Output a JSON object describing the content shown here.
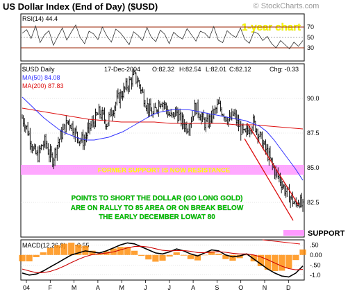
{
  "chart_data": {
    "type": "line",
    "title": "US Dollar Index (End of Day) ($USD)",
    "watermark": "© StockCharts.com",
    "corner_label": "1-year chart",
    "rsi_panel": {
      "label": "RSI(14) 44.4",
      "levels": [
        70,
        50,
        30
      ],
      "tick_labels": [
        "70",
        "50",
        "30"
      ],
      "series": [
        58,
        65,
        48,
        72,
        40,
        55,
        63,
        35,
        52,
        68,
        45,
        60,
        74,
        50,
        38,
        62,
        57,
        46,
        70,
        53,
        41,
        66,
        59,
        48,
        36,
        61,
        54,
        44,
        69,
        50,
        42,
        64,
        56,
        38,
        60,
        52,
        47,
        67,
        55,
        43,
        62,
        58,
        49,
        71,
        45,
        40,
        63,
        55,
        50,
        68,
        46,
        39,
        61,
        57,
        44,
        52,
        38,
        30,
        44,
        36,
        28,
        41,
        33,
        44
      ]
    },
    "price_panel": {
      "symbol_label": "$USD Daily",
      "date_label": "17-Dec-2004",
      "ohlc": {
        "open": "O:82.32",
        "high": "H:82.54",
        "low": "L:82.01",
        "close": "C:82.12",
        "change": "Chg: -0.33"
      },
      "ma50_label": "MA(50) 84.08",
      "ma200_label": "MA(200) 87.83",
      "ma50_color": "#3333ff",
      "ma200_color": "#dd1111",
      "y_tick_labels": [
        "90.0",
        "87.5",
        "85.0",
        "82.5"
      ],
      "y_ticks": [
        90.0,
        87.5,
        85.0,
        82.5
      ],
      "ylim": [
        80.0,
        92.5
      ],
      "closes": [
        88.6,
        88.0,
        87.2,
        86.2,
        85.8,
        86.5,
        86.9,
        86.0,
        85.6,
        86.6,
        87.3,
        87.9,
        88.4,
        88.0,
        87.4,
        87.1,
        86.9,
        87.6,
        88.1,
        88.5,
        89.0,
        88.7,
        88.2,
        88.9,
        89.5,
        90.0,
        90.4,
        90.8,
        91.2,
        91.6,
        91.3,
        90.6,
        89.8,
        89.2,
        88.8,
        89.4,
        89.9,
        89.6,
        88.9,
        88.6,
        89.1,
        88.5,
        88.2,
        87.9,
        88.6,
        89.4,
        89.0,
        88.4,
        88.1,
        88.6,
        89.0,
        89.5,
        89.1,
        88.7,
        88.4,
        88.9,
        88.2,
        87.7,
        87.3,
        87.9,
        88.3,
        87.8,
        87.1,
        86.5,
        85.9,
        85.2,
        84.6,
        84.2,
        83.6,
        83.1,
        82.8,
        82.3,
        82.7,
        82.1
      ],
      "ma50": [
        90.1,
        89.6,
        89.1,
        88.6,
        88.2,
        87.8,
        87.5,
        87.3,
        87.1,
        87.0,
        87.0,
        87.1,
        87.2,
        87.4,
        87.6,
        87.9,
        88.2,
        88.5,
        88.8,
        89.0,
        89.1,
        89.2,
        89.2,
        89.2,
        89.1,
        89.0,
        88.9,
        88.8,
        88.7,
        88.6,
        88.5,
        88.4,
        88.2,
        88.0,
        87.6,
        87.0,
        86.3,
        85.6,
        84.9,
        84.1
      ],
      "ma200": [
        89.3,
        89.1,
        88.9,
        88.7,
        88.5,
        88.4,
        88.3,
        88.3,
        88.3,
        88.2,
        88.2,
        88.2,
        88.2,
        88.1,
        88.1,
        88.0,
        87.9,
        87.8
      ],
      "support_band": [
        84.5,
        85.2
      ],
      "support_band_text": "FORMER SUPPORT IS NOW RESISTANCE",
      "support_level": 80.3,
      "support_label": "SUPPORT",
      "channel_upper": [
        [
          88.8,
          83.2
        ]
      ],
      "annotation": [
        "POINTS TO SHORT THE DOLLAR (GO LONG GOLD)",
        "ARE ON RALLY TO 85 AREA OR ON BREAK BELOW",
        "THE EARLY DECEMBER LOWAT 80"
      ]
    },
    "macd_panel": {
      "label": "MACD(12,26,9)",
      "value_label": "-0.55",
      "y_tick_labels": [
        ".50",
        "0.00",
        "-.50",
        "-1.0"
      ],
      "y_ticks": [
        0.5,
        0.0,
        -0.5,
        -1.0
      ],
      "ylim": [
        -1.25,
        0.75
      ],
      "macd": [
        -0.9,
        -1.0,
        -0.95,
        -0.8,
        -0.6,
        -0.4,
        -0.2,
        0.0,
        0.1,
        0.2,
        0.15,
        0.1,
        0.2,
        0.35,
        0.5,
        0.6,
        0.55,
        0.4,
        0.25,
        0.1,
        0.05,
        0.15,
        0.3,
        0.2,
        0.05,
        -0.05,
        0.1,
        0.25,
        0.2,
        0.0,
        -0.1,
        -0.05,
        0.05,
        -0.2,
        -0.45,
        -0.7,
        -0.9,
        -1.05,
        -1.1,
        -0.9,
        -0.55
      ],
      "signal": [
        -0.7,
        -0.8,
        -0.88,
        -0.88,
        -0.82,
        -0.7,
        -0.55,
        -0.38,
        -0.22,
        -0.08,
        0.02,
        0.06,
        0.09,
        0.15,
        0.25,
        0.35,
        0.42,
        0.43,
        0.39,
        0.31,
        0.23,
        0.2,
        0.22,
        0.22,
        0.18,
        0.12,
        0.11,
        0.14,
        0.16,
        0.13,
        0.08,
        0.05,
        0.05,
        0.0,
        -0.1,
        -0.24,
        -0.4,
        -0.56,
        -0.68,
        -0.74,
        -0.72
      ]
    },
    "x_tick_labels": [
      "04",
      "F",
      "M",
      "A",
      "M",
      "J",
      "J",
      "A",
      "S",
      "O",
      "N",
      "D"
    ],
    "colors": {
      "yellow_text": "#ffff00",
      "green_text": "#00cc00",
      "band": "#ff99ff",
      "macd_hist": "#ff8800"
    }
  }
}
